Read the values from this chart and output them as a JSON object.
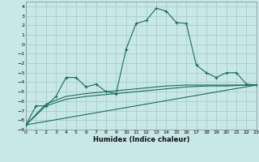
{
  "xlabel": "Humidex (Indice chaleur)",
  "xlim": [
    0,
    23
  ],
  "ylim": [
    -9,
    4.5
  ],
  "xticks": [
    0,
    1,
    2,
    3,
    4,
    5,
    6,
    7,
    8,
    9,
    10,
    11,
    12,
    13,
    14,
    15,
    16,
    17,
    18,
    19,
    20,
    21,
    22,
    23
  ],
  "yticks": [
    -9,
    -8,
    -7,
    -6,
    -5,
    -4,
    -3,
    -2,
    -1,
    0,
    1,
    2,
    3,
    4
  ],
  "bg_color": "#c8e8e8",
  "grid_color": "#a8cccc",
  "line_color": "#1a6b5a",
  "series1_x": [
    0,
    1,
    2,
    3,
    4,
    5,
    6,
    7,
    8,
    9,
    10,
    11,
    12,
    13,
    14,
    15,
    16,
    17,
    18,
    19,
    20,
    21,
    22,
    23
  ],
  "series1_y": [
    -8.5,
    -6.5,
    -6.5,
    -5.5,
    -3.5,
    -3.5,
    -4.5,
    -4.2,
    -5.0,
    -5.2,
    -0.5,
    2.2,
    2.5,
    3.8,
    3.5,
    2.3,
    2.2,
    -2.2,
    -3.0,
    -3.5,
    -3.0,
    -3.0,
    -4.2,
    -4.3
  ],
  "series2_x": [
    0,
    23
  ],
  "series2_y": [
    -8.5,
    -4.3
  ],
  "series3_x": [
    0,
    2,
    4,
    6,
    8,
    10,
    12,
    14,
    16,
    18,
    20,
    22,
    23
  ],
  "series3_y": [
    -8.5,
    -6.3,
    -5.5,
    -5.2,
    -5.0,
    -4.8,
    -4.6,
    -4.4,
    -4.3,
    -4.3,
    -4.3,
    -4.3,
    -4.3
  ],
  "series4_x": [
    0,
    2,
    4,
    6,
    8,
    10,
    12,
    14,
    16,
    18,
    20,
    22,
    23
  ],
  "series4_y": [
    -8.5,
    -6.5,
    -5.8,
    -5.5,
    -5.3,
    -5.1,
    -4.9,
    -4.7,
    -4.5,
    -4.4,
    -4.4,
    -4.3,
    -4.3
  ]
}
